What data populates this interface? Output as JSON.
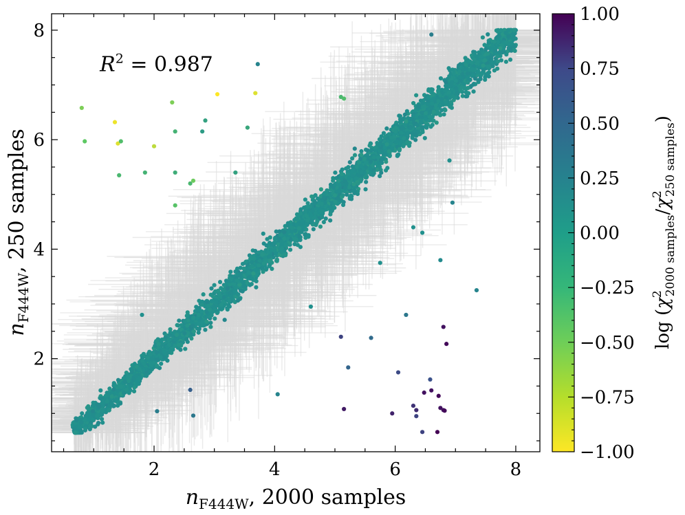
{
  "chart_data": {
    "type": "scatter",
    "xlabel": "n_F444W, 2000 samples",
    "ylabel": "n_F444W, 250 samples",
    "x_axis_title": {
      "base": "n",
      "sub": "F444W",
      "rest": ", 2000 samples"
    },
    "y_axis_title": {
      "base": "n",
      "sub": "F444W",
      "rest": ", 250 samples"
    },
    "xlim": [
      0.3,
      8.4
    ],
    "ylim": [
      0.3,
      8.3
    ],
    "x_ticks": [
      2,
      4,
      6,
      8
    ],
    "y_ticks": [
      2,
      4,
      6,
      8
    ],
    "x_tick_labels": [
      "2",
      "4",
      "6",
      "8"
    ],
    "y_tick_labels": [
      "2",
      "4",
      "6",
      "8"
    ],
    "annotation": {
      "text": "R² = 0.987",
      "lhs": "R",
      "sup": "2",
      "rhs": " = 0.987",
      "x": 1.1,
      "y": 7.25
    },
    "colorbar": {
      "label": "log (χ²2000 samples/χ²250 samples)",
      "label_parts": {
        "prefix": "log (",
        "chi": "χ",
        "sup": "2",
        "sub_top": "2000 samples",
        "slash": "/",
        "sub_bottom": "250 samples",
        "suffix": ")"
      },
      "cmap": "viridis_r",
      "range": [
        -1.0,
        1.0
      ],
      "ticks": [
        1.0,
        0.75,
        0.5,
        0.25,
        0.0,
        -0.25,
        -0.5,
        -0.75,
        -1.0
      ],
      "tick_labels": [
        "1.00",
        "0.75",
        "0.50",
        "0.25",
        "0.00",
        "−0.25",
        "−0.50",
        "−0.75",
        "−1.00"
      ],
      "colors": [
        "#440154",
        "#3b528b",
        "#21908d",
        "#5dc863",
        "#fde725"
      ]
    },
    "errorbar_color": "#d9d9d9",
    "main_trend": {
      "description": "dense 1:1 band, color value ~0",
      "x_range": [
        0.65,
        8.0
      ],
      "scatter_sd": 0.15,
      "color_value": 0.0,
      "n_points": 4000
    },
    "series": [
      {
        "name": "outliers",
        "points": [
          {
            "x": 0.8,
            "y": 6.58,
            "c": -0.6
          },
          {
            "x": 0.85,
            "y": 5.97,
            "c": -0.5
          },
          {
            "x": 1.35,
            "y": 6.32,
            "c": -0.95
          },
          {
            "x": 1.4,
            "y": 5.93,
            "c": -0.9
          },
          {
            "x": 1.45,
            "y": 5.97,
            "c": -0.4
          },
          {
            "x": 1.42,
            "y": 5.35,
            "c": -0.35
          },
          {
            "x": 1.85,
            "y": 5.4,
            "c": -0.3
          },
          {
            "x": 2.0,
            "y": 5.88,
            "c": -0.8
          },
          {
            "x": 2.3,
            "y": 6.68,
            "c": -0.6
          },
          {
            "x": 2.35,
            "y": 6.15,
            "c": -0.3
          },
          {
            "x": 2.35,
            "y": 5.4,
            "c": -0.25
          },
          {
            "x": 2.35,
            "y": 4.8,
            "c": -0.45
          },
          {
            "x": 2.6,
            "y": 5.2,
            "c": -0.35
          },
          {
            "x": 2.65,
            "y": 5.25,
            "c": -0.55
          },
          {
            "x": 2.8,
            "y": 6.15,
            "c": -0.1
          },
          {
            "x": 2.85,
            "y": 6.35,
            "c": -0.15
          },
          {
            "x": 3.05,
            "y": 6.83,
            "c": -1.0
          },
          {
            "x": 3.35,
            "y": 5.4,
            "c": -0.15
          },
          {
            "x": 3.55,
            "y": 6.22,
            "c": -0.2
          },
          {
            "x": 3.68,
            "y": 6.85,
            "c": -0.9
          },
          {
            "x": 3.72,
            "y": 7.38,
            "c": 0.1
          },
          {
            "x": 5.1,
            "y": 6.78,
            "c": -0.35
          },
          {
            "x": 5.15,
            "y": 6.75,
            "c": -0.4
          },
          {
            "x": 1.8,
            "y": 2.8,
            "c": 0.0
          },
          {
            "x": 2.6,
            "y": 1.43,
            "c": 0.4
          },
          {
            "x": 2.65,
            "y": 0.96,
            "c": 0.2
          },
          {
            "x": 2.05,
            "y": 1.04,
            "c": 0.15
          },
          {
            "x": 4.05,
            "y": 1.35,
            "c": 0.1
          },
          {
            "x": 5.1,
            "y": 2.4,
            "c": 0.6
          },
          {
            "x": 5.6,
            "y": 2.38,
            "c": 0.3
          },
          {
            "x": 5.22,
            "y": 1.84,
            "c": 0.35
          },
          {
            "x": 6.05,
            "y": 1.75,
            "c": 0.55
          },
          {
            "x": 6.18,
            "y": 2.8,
            "c": 0.2
          },
          {
            "x": 5.15,
            "y": 1.08,
            "c": 0.85
          },
          {
            "x": 5.95,
            "y": 1.0,
            "c": 0.8
          },
          {
            "x": 6.3,
            "y": 1.14,
            "c": 0.7
          },
          {
            "x": 6.35,
            "y": 1.06,
            "c": 0.75
          },
          {
            "x": 6.35,
            "y": 0.95,
            "c": 0.6
          },
          {
            "x": 6.48,
            "y": 1.38,
            "c": 0.9
          },
          {
            "x": 6.58,
            "y": 1.62,
            "c": 0.5
          },
          {
            "x": 6.6,
            "y": 1.42,
            "c": 0.9
          },
          {
            "x": 6.72,
            "y": 1.32,
            "c": 0.95
          },
          {
            "x": 6.75,
            "y": 1.1,
            "c": 0.9
          },
          {
            "x": 6.8,
            "y": 1.06,
            "c": 0.9
          },
          {
            "x": 6.82,
            "y": 1.05,
            "c": 0.95
          },
          {
            "x": 6.8,
            "y": 2.58,
            "c": 0.9
          },
          {
            "x": 6.85,
            "y": 2.27,
            "c": 0.95
          },
          {
            "x": 6.45,
            "y": 0.66,
            "c": 0.6
          },
          {
            "x": 6.7,
            "y": 0.66,
            "c": 1.0
          },
          {
            "x": 6.75,
            "y": 3.8,
            "c": 0.05
          },
          {
            "x": 7.35,
            "y": 3.25,
            "c": 0.1
          },
          {
            "x": 6.95,
            "y": 4.85,
            "c": 0.1
          },
          {
            "x": 6.9,
            "y": 5.62,
            "c": 0.0
          },
          {
            "x": 6.6,
            "y": 7.92,
            "c": 0.15
          },
          {
            "x": 6.3,
            "y": 4.4,
            "c": 0.0
          },
          {
            "x": 6.45,
            "y": 4.3,
            "c": 0.0
          },
          {
            "x": 5.75,
            "y": 3.75,
            "c": 0.0
          },
          {
            "x": 4.6,
            "y": 2.95,
            "c": 0.0
          }
        ]
      }
    ]
  }
}
